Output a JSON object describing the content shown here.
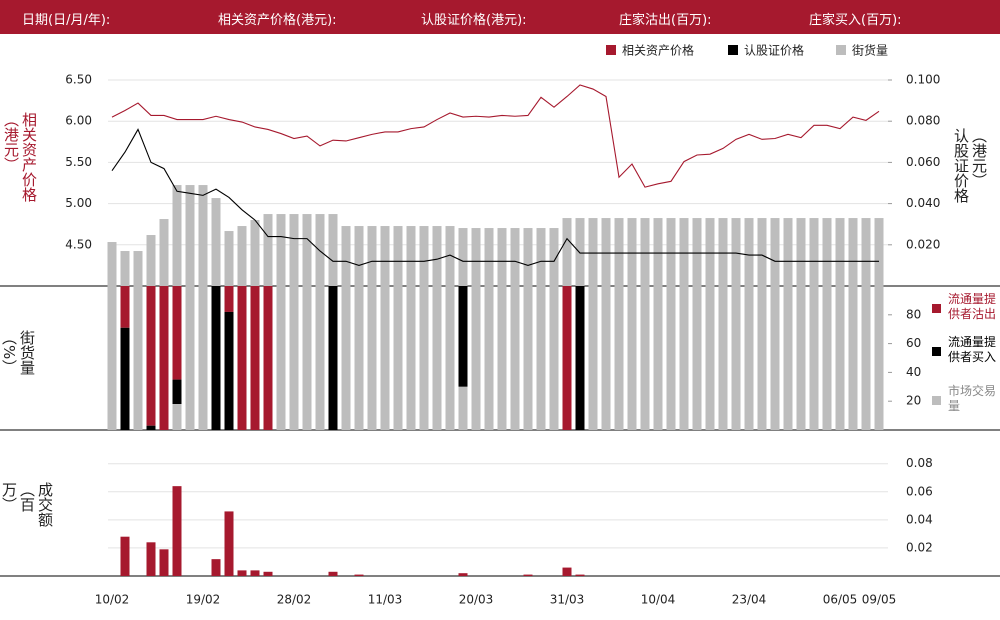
{
  "header": {
    "labels": [
      "日期(日/月/年):",
      "相关资产价格(港元):",
      "认股证价格(港元):",
      "庄家沽出(百万):",
      "庄家买入(百万):"
    ]
  },
  "chart_data": [
    {
      "type": "combo",
      "ylabel": "相关资产价格（港元）",
      "y2label": "认股证价格（港元）",
      "legend": "top-right",
      "grid": true,
      "ylim": [
        4.0,
        6.5
      ],
      "yticks": [
        {
          "value": 4.5,
          "label": "4.50"
        },
        {
          "value": 5.0,
          "label": "5.00"
        },
        {
          "value": 5.5,
          "label": "5.50"
        },
        {
          "value": 6.0,
          "label": "6.00"
        },
        {
          "value": 6.5,
          "label": "6.50"
        }
      ],
      "y2lim": [
        0,
        0.1
      ],
      "y2ticks": [
        {
          "value": 0.02,
          "label": "0.020"
        },
        {
          "value": 0.04,
          "label": "0.040"
        },
        {
          "value": 0.06,
          "label": "0.060"
        },
        {
          "value": 0.08,
          "label": "0.080"
        },
        {
          "value": 0.1,
          "label": "0.100"
        }
      ],
      "series": [
        {
          "name": "相关资产价格",
          "kind": "line",
          "color": "#a6192e",
          "values": [
            6.05,
            6.13,
            6.22,
            6.07,
            6.07,
            6.02,
            6.02,
            6.02,
            6.06,
            6.02,
            5.99,
            5.93,
            5.9,
            5.85,
            5.79,
            5.82,
            5.7,
            5.77,
            5.76,
            5.8,
            5.84,
            5.87,
            5.87,
            5.91,
            5.93,
            6.02,
            6.1,
            6.05,
            6.06,
            6.05,
            6.07,
            6.06,
            6.07,
            6.29,
            6.17,
            6.3,
            6.44,
            6.39,
            6.3,
            5.32,
            5.48,
            5.2,
            5.24,
            5.27,
            5.51,
            5.59,
            5.6,
            5.67,
            5.78,
            5.84,
            5.78,
            5.79,
            5.84,
            5.8,
            5.95,
            5.95,
            5.91,
            6.05,
            6.01,
            6.12
          ]
        },
        {
          "name": "认股证价格",
          "kind": "line",
          "color": "#000000",
          "axis": "y2",
          "values": [
            0.056,
            0.065,
            0.076,
            0.06,
            0.057,
            0.046,
            0.045,
            0.044,
            0.047,
            0.043,
            0.037,
            0.032,
            0.024,
            0.024,
            0.023,
            0.023,
            0.017,
            0.012,
            0.012,
            0.01,
            0.012,
            0.012,
            0.012,
            0.012,
            0.012,
            0.013,
            0.015,
            0.012,
            0.012,
            0.012,
            0.012,
            0.012,
            0.01,
            0.012,
            0.012,
            0.023,
            0.016,
            0.016,
            0.016,
            0.016,
            0.016,
            0.016,
            0.016,
            0.016,
            0.016,
            0.016,
            0.016,
            0.016,
            0.016,
            0.015,
            0.015,
            0.012,
            0.012,
            0.012,
            0.012,
            0.012,
            0.012,
            0.012,
            0.012,
            0.012
          ]
        },
        {
          "name": "街货量",
          "kind": "bar",
          "color": "#bdbdbd",
          "values": [
            44,
            35,
            35,
            51,
            67,
            101,
            101,
            101,
            88,
            55,
            60,
            66,
            72,
            72,
            72,
            72,
            72,
            72,
            60,
            60,
            60,
            60,
            60,
            60,
            60,
            60,
            60,
            58,
            58,
            58,
            58,
            58,
            58,
            58,
            58,
            68,
            68,
            68,
            68,
            68,
            68,
            68,
            68,
            68,
            68,
            68,
            68,
            68,
            68,
            68,
            68,
            68,
            68,
            68,
            68,
            68,
            68,
            68,
            68,
            68
          ]
        }
      ]
    },
    {
      "type": "stacked",
      "ylabel": "街货量（%）",
      "ylim": [
        0,
        100
      ],
      "yticks": [
        20,
        40,
        60,
        80
      ],
      "legend": "right",
      "series": [
        {
          "name": "流通量提供者沽出",
          "color": "#a6192e",
          "values": [
            0,
            29,
            0,
            97,
            100,
            65,
            0,
            0,
            0,
            18,
            100,
            100,
            100,
            0,
            0,
            0,
            0,
            0,
            0,
            0,
            0,
            0,
            0,
            0,
            0,
            0,
            0,
            0,
            0,
            0,
            0,
            0,
            0,
            0,
            0,
            100,
            0,
            0,
            0,
            0,
            0,
            0,
            0,
            0,
            0,
            0,
            0,
            0,
            0,
            0,
            0,
            0,
            0,
            0,
            0,
            0,
            0,
            0,
            0,
            0
          ]
        },
        {
          "name": "流通量提供者买入",
          "color": "#000000",
          "values": [
            0,
            71,
            0,
            3,
            0,
            17,
            0,
            0,
            100,
            82,
            0,
            0,
            0,
            0,
            0,
            0,
            0,
            100,
            0,
            0,
            0,
            0,
            0,
            0,
            0,
            0,
            0,
            70,
            0,
            0,
            0,
            0,
            0,
            0,
            0,
            0,
            100,
            0,
            0,
            0,
            0,
            0,
            0,
            0,
            0,
            0,
            0,
            0,
            0,
            0,
            0,
            0,
            0,
            0,
            0,
            0,
            0,
            0,
            0,
            0
          ]
        },
        {
          "name": "市场交易量",
          "color": "#bdbdbd",
          "values": [
            100,
            0,
            100,
            0,
            0,
            18,
            100,
            100,
            0,
            0,
            0,
            0,
            0,
            100,
            100,
            100,
            100,
            0,
            100,
            100,
            100,
            100,
            100,
            100,
            100,
            100,
            100,
            30,
            100,
            100,
            100,
            100,
            100,
            100,
            100,
            0,
            0,
            100,
            100,
            100,
            100,
            100,
            100,
            100,
            100,
            100,
            100,
            100,
            100,
            100,
            100,
            100,
            100,
            100,
            100,
            100,
            100,
            100,
            100,
            100
          ]
        }
      ]
    },
    {
      "type": "bar",
      "ylabel": "成交额（百万）",
      "ylim": [
        0,
        0.104
      ],
      "yticks": [
        0.02,
        0.04,
        0.06,
        0.08
      ],
      "grid": true,
      "color": "#a6192e",
      "categories": [
        "10/02",
        null,
        null,
        null,
        null,
        null,
        null,
        "19/02",
        null,
        null,
        null,
        null,
        null,
        null,
        "28/02",
        null,
        null,
        null,
        null,
        null,
        null,
        "11/03",
        null,
        null,
        null,
        null,
        null,
        null,
        "20/03",
        null,
        null,
        null,
        null,
        null,
        null,
        "31/03",
        null,
        null,
        null,
        null,
        null,
        null,
        "10/04",
        null,
        null,
        null,
        null,
        null,
        null,
        "23/04",
        null,
        null,
        null,
        null,
        null,
        null,
        "06/05",
        null,
        null,
        "09/05"
      ],
      "values": [
        0,
        0.028,
        0,
        0.024,
        0.019,
        0.064,
        0,
        0,
        0.012,
        0.046,
        0.004,
        0.004,
        0.003,
        0,
        0,
        0,
        0,
        0.003,
        0,
        0.001,
        0,
        0,
        0,
        0,
        0,
        0,
        0,
        0.002,
        0,
        0,
        0,
        0,
        0.001,
        0,
        0,
        0.006,
        0.001,
        0,
        0,
        0,
        0,
        0,
        0,
        0,
        0,
        0,
        0,
        0,
        0,
        0,
        0,
        0,
        0,
        0,
        0,
        0,
        0,
        0,
        0,
        0
      ]
    }
  ]
}
